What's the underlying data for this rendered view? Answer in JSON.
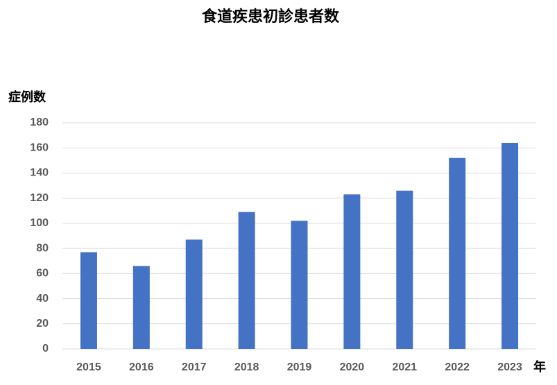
{
  "chart_data": {
    "type": "bar",
    "title": "食道疾患初診患者数",
    "y_label": "症例数",
    "x_label": "年",
    "categories": [
      "2015",
      "2016",
      "2017",
      "2018",
      "2019",
      "2020",
      "2021",
      "2022",
      "2023"
    ],
    "values": [
      77,
      66,
      87,
      109,
      102,
      123,
      126,
      152,
      164
    ],
    "color": "#4472c4",
    "ylim": [
      0,
      180
    ],
    "yticks": [
      0,
      20,
      40,
      60,
      80,
      100,
      120,
      140,
      160,
      180
    ],
    "grid": true
  }
}
